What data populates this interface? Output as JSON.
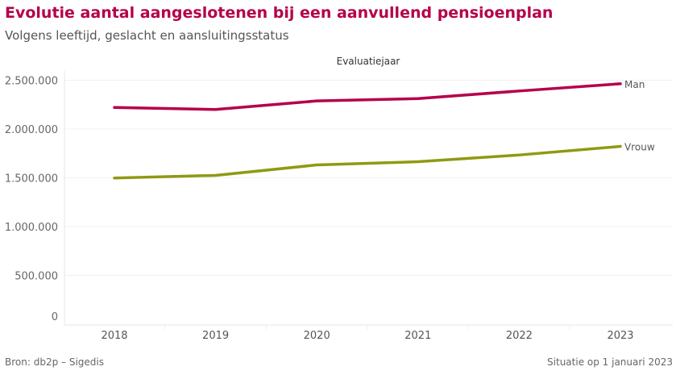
{
  "title": "Evolutie aantal aangeslotenen bij een aanvullend pensioenplan",
  "subtitle": "Volgens leeftijd, geslacht en aansluitingsstatus",
  "footer": {
    "source": "Bron: db2p – Sigedis",
    "date": "Situatie op 1 januari 2023"
  },
  "chart_data": {
    "type": "line",
    "xlabel": "Evaluatiejaar",
    "ylabel": "",
    "x": [
      "2018",
      "2019",
      "2020",
      "2021",
      "2022",
      "2023"
    ],
    "ylim": [
      0,
      2500000
    ],
    "yticks": [
      0,
      500000,
      1000000,
      1500000,
      2000000,
      2500000
    ],
    "ytick_labels": [
      "0",
      "500.000",
      "1.000.000",
      "1.500.000",
      "2.000.000",
      "2.500.000"
    ],
    "grid": true,
    "series": [
      {
        "name": "Man",
        "color": "#b5004a",
        "values": [
          2221000,
          2200000,
          2288000,
          2312000,
          2390000,
          2464000
        ]
      },
      {
        "name": "Vrouw",
        "color": "#8e9a12",
        "values": [
          1498000,
          1525000,
          1632000,
          1665000,
          1734000,
          1822000
        ]
      }
    ]
  }
}
